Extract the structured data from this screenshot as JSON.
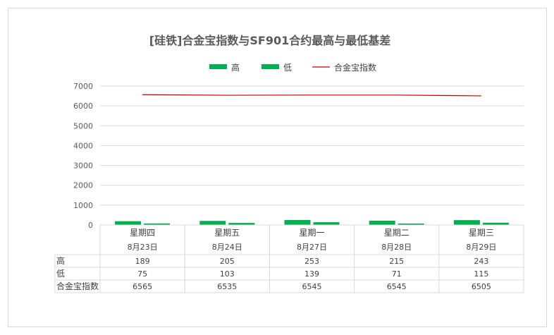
{
  "chart_data": {
    "type": "bar",
    "title": "[硅铁]合金宝指数与SF901合约最高与最低基差",
    "categories": [
      "星期四",
      "星期五",
      "星期一",
      "星期二",
      "星期三"
    ],
    "dates": [
      "8月23日",
      "8月24日",
      "8月27日",
      "8月28日",
      "8月29日"
    ],
    "series": [
      {
        "name": "高",
        "kind": "bar",
        "color": "#00b050",
        "values": [
          189,
          205,
          253,
          215,
          243
        ]
      },
      {
        "name": "低",
        "kind": "bar",
        "color": "#00b050",
        "values": [
          75,
          103,
          139,
          71,
          115
        ]
      },
      {
        "name": "合金宝指数",
        "kind": "line",
        "color": "#c00000",
        "values": [
          6565,
          6535,
          6545,
          6545,
          6505
        ]
      }
    ],
    "ylim": [
      0,
      7000
    ],
    "yticks": [
      0,
      1000,
      2000,
      3000,
      4000,
      5000,
      6000,
      7000
    ],
    "grid": true,
    "legend": "top",
    "data_table": true
  }
}
